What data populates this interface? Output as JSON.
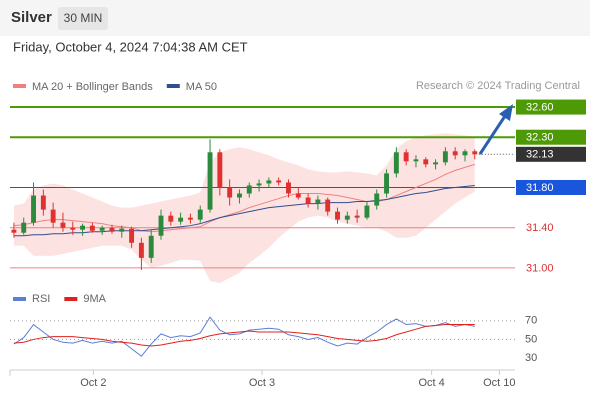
{
  "header": {
    "symbol": "Silver",
    "interval": "30 MIN",
    "datetime": "Friday, October 4, 2024 7:04:38 AM CET"
  },
  "chart_data": [
    {
      "type": "candlestick",
      "watermark": "Research © 2024 Trading Central",
      "up_color": "#2b8a3e",
      "down_color": "#e03131",
      "candles": [
        [
          31.38,
          31.45,
          31.3,
          31.35
        ],
        [
          31.35,
          31.5,
          31.33,
          31.45
        ],
        [
          31.45,
          31.85,
          31.42,
          31.72
        ],
        [
          31.72,
          31.78,
          31.52,
          31.58
        ],
        [
          31.58,
          31.65,
          31.4,
          31.45
        ],
        [
          31.45,
          31.55,
          31.36,
          31.4
        ],
        [
          31.4,
          31.46,
          31.33,
          31.38
        ],
        [
          31.38,
          31.44,
          31.32,
          31.42
        ],
        [
          31.42,
          31.45,
          31.35,
          31.37
        ],
        [
          31.37,
          31.42,
          31.33,
          31.4
        ],
        [
          31.4,
          31.43,
          31.34,
          31.36
        ],
        [
          31.36,
          31.42,
          31.3,
          31.39
        ],
        [
          31.39,
          31.41,
          31.2,
          31.25
        ],
        [
          31.25,
          31.3,
          30.98,
          31.1
        ],
        [
          31.1,
          31.38,
          31.05,
          31.32
        ],
        [
          31.32,
          31.58,
          31.28,
          31.52
        ],
        [
          31.52,
          31.56,
          31.42,
          31.46
        ],
        [
          31.46,
          31.55,
          31.43,
          31.5
        ],
        [
          31.5,
          31.54,
          31.44,
          31.48
        ],
        [
          31.48,
          31.62,
          31.45,
          31.58
        ],
        [
          31.58,
          32.28,
          31.55,
          32.15
        ],
        [
          32.15,
          32.18,
          31.72,
          31.8
        ],
        [
          31.8,
          31.88,
          31.62,
          31.7
        ],
        [
          31.7,
          31.78,
          31.64,
          31.74
        ],
        [
          31.74,
          31.85,
          31.7,
          31.82
        ],
        [
          31.82,
          31.88,
          31.76,
          31.84
        ],
        [
          31.84,
          31.9,
          31.8,
          31.87
        ],
        [
          31.87,
          31.9,
          31.82,
          31.85
        ],
        [
          31.85,
          31.88,
          31.7,
          31.74
        ],
        [
          31.74,
          31.8,
          31.68,
          31.7
        ],
        [
          31.7,
          31.74,
          31.6,
          31.64
        ],
        [
          31.64,
          31.72,
          31.58,
          31.68
        ],
        [
          31.68,
          31.7,
          31.52,
          31.56
        ],
        [
          31.56,
          31.6,
          31.44,
          31.48
        ],
        [
          31.48,
          31.56,
          31.44,
          31.52
        ],
        [
          31.52,
          31.58,
          31.45,
          31.5
        ],
        [
          31.5,
          31.66,
          31.48,
          31.62
        ],
        [
          31.62,
          31.78,
          31.58,
          31.74
        ],
        [
          31.74,
          31.98,
          31.7,
          31.94
        ],
        [
          31.94,
          32.2,
          31.9,
          32.15
        ],
        [
          32.15,
          32.18,
          32.02,
          32.06
        ],
        [
          32.06,
          32.12,
          32.0,
          32.08
        ],
        [
          32.08,
          32.1,
          32.0,
          32.03
        ],
        [
          32.03,
          32.08,
          31.98,
          32.05
        ],
        [
          32.05,
          32.2,
          32.02,
          32.16
        ],
        [
          32.16,
          32.2,
          32.08,
          32.12
        ],
        [
          32.12,
          32.18,
          32.06,
          32.16
        ],
        [
          32.16,
          32.18,
          32.08,
          32.13
        ]
      ],
      "series": [
        {
          "name": "MA 20 + Bollinger Bands",
          "color": "#f08080",
          "band_color": "#fde2e2",
          "values": [
            31.42,
            31.43,
            31.45,
            31.47,
            31.48,
            31.48,
            31.47,
            31.46,
            31.45,
            31.44,
            31.42,
            31.41,
            31.4,
            31.37,
            31.36,
            31.37,
            31.38,
            31.39,
            31.4,
            31.41,
            31.46,
            31.5,
            31.53,
            31.56,
            31.6,
            31.63,
            31.66,
            31.69,
            31.72,
            31.74,
            31.74,
            31.74,
            31.73,
            31.72,
            31.7,
            31.68,
            31.66,
            31.66,
            31.68,
            31.72,
            31.76,
            31.8,
            31.84,
            31.88,
            31.93,
            31.97,
            32.0,
            32.03
          ],
          "upper": [
            31.62,
            31.64,
            31.78,
            31.82,
            31.84,
            31.82,
            31.78,
            31.74,
            31.7,
            31.66,
            31.62,
            31.6,
            31.6,
            31.62,
            31.64,
            31.66,
            31.68,
            31.7,
            31.72,
            31.75,
            32.05,
            32.15,
            32.18,
            32.2,
            32.18,
            32.15,
            32.12,
            32.08,
            32.05,
            32.02,
            31.98,
            31.96,
            31.95,
            31.95,
            31.96,
            31.95,
            31.94,
            31.92,
            32.02,
            32.18,
            32.26,
            32.3,
            32.32,
            32.33,
            32.34,
            32.33,
            32.32,
            32.3
          ],
          "lower": [
            31.22,
            31.22,
            31.12,
            31.12,
            31.12,
            31.14,
            31.16,
            31.18,
            31.2,
            31.22,
            31.22,
            31.22,
            31.18,
            31.08,
            31.0,
            31.02,
            31.05,
            31.08,
            31.08,
            31.07,
            30.87,
            30.85,
            30.9,
            30.95,
            31.05,
            31.12,
            31.2,
            31.3,
            31.38,
            31.46,
            31.5,
            31.52,
            31.5,
            31.46,
            31.44,
            31.42,
            31.4,
            31.4,
            31.36,
            31.3,
            31.3,
            31.32,
            31.4,
            31.48,
            31.56,
            31.64,
            31.7,
            31.76
          ]
        },
        {
          "name": "MA 50",
          "color": "#2f4f8f",
          "values": [
            31.32,
            31.32,
            31.33,
            31.33,
            31.34,
            31.34,
            31.35,
            31.35,
            31.36,
            31.36,
            31.37,
            31.37,
            31.37,
            31.37,
            31.38,
            31.39,
            31.4,
            31.41,
            31.42,
            31.44,
            31.47,
            31.5,
            31.52,
            31.54,
            31.56,
            31.58,
            31.6,
            31.61,
            31.62,
            31.63,
            31.64,
            31.64,
            31.65,
            31.65,
            31.65,
            31.66,
            31.66,
            31.67,
            31.68,
            31.7,
            31.72,
            31.74,
            31.75,
            31.77,
            31.79,
            31.8,
            31.81,
            31.82
          ]
        }
      ],
      "levels": [
        {
          "value": {
            "value": 32.6,
            "label": "32.60"
          },
          "color": "#4e9a06",
          "tag": true
        },
        {
          "value": {
            "value": 32.3,
            "label": "32.30"
          },
          "color": "#4e9a06",
          "tag": true
        },
        {
          "value": {
            "value": 31.8,
            "label": "31.80"
          },
          "color": "#1a56db",
          "tag": true
        },
        {
          "value": {
            "value": 31.4,
            "label": "31.40"
          },
          "color": "#f08080",
          "tag": false
        },
        {
          "value": {
            "value": 31.0,
            "label": "31.00"
          },
          "color": "#f08080",
          "tag": false
        }
      ],
      "last_price": {
        "value": 32.13,
        "color": "#333333"
      },
      "ylim": [
        30.83,
        32.71
      ],
      "xlim": [
        -0.4,
        51.1
      ],
      "xticks": [
        {
          "value": 8.1,
          "label": "Oct 2"
        },
        {
          "value": 25.3,
          "label": "Oct 3"
        },
        {
          "value": 42.6,
          "label": "Oct 4"
        },
        {
          "value": 49.5,
          "label": "Oct 10"
        }
      ]
    },
    {
      "type": "line",
      "series": [
        {
          "name": "RSI",
          "color": "#5b7fd6",
          "values": [
            45,
            52,
            66,
            58,
            50,
            47,
            46,
            49,
            46,
            48,
            46,
            48,
            40,
            32,
            45,
            56,
            52,
            54,
            53,
            57,
            74,
            60,
            55,
            56,
            60,
            61,
            62,
            61,
            55,
            53,
            50,
            52,
            47,
            43,
            46,
            45,
            52,
            58,
            66,
            72,
            66,
            67,
            64,
            65,
            68,
            64,
            66,
            64
          ]
        },
        {
          "name": "9MA",
          "color": "#e02020",
          "values": [
            46,
            47,
            50,
            52,
            53,
            53,
            53,
            52,
            51,
            50,
            48,
            47,
            46,
            44,
            43,
            44,
            46,
            48,
            49,
            51,
            54,
            56,
            57,
            58,
            59,
            58,
            58,
            58,
            58,
            57,
            56,
            55,
            53,
            51,
            50,
            49,
            48,
            49,
            51,
            55,
            58,
            61,
            64,
            65,
            66,
            66,
            66,
            66
          ]
        }
      ],
      "ylim": [
        15,
        87
      ],
      "yticks": [
        30,
        50,
        70
      ]
    }
  ]
}
